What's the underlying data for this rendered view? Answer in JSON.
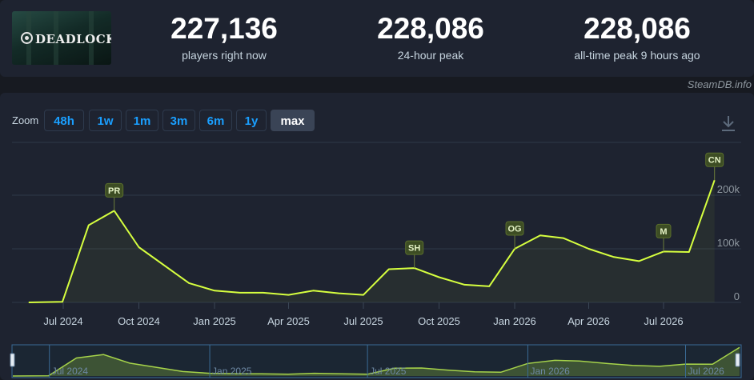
{
  "game": {
    "logo_text": "DEADLOCK"
  },
  "stats": [
    {
      "value": "227,136",
      "label": "players right now"
    },
    {
      "value": "228,086",
      "label": "24-hour peak"
    },
    {
      "value": "228,086",
      "label": "all-time peak 9 hours ago"
    }
  ],
  "credit": "SteamDB.info",
  "zoom": {
    "label": "Zoom",
    "buttons": [
      "48h",
      "1w",
      "1m",
      "3m",
      "6m",
      "1y",
      "max"
    ],
    "active": "max"
  },
  "chart_data": {
    "type": "line",
    "series": [
      {
        "x": [
          "2024-05-20",
          "2024-06-30",
          "2024-08-01",
          "2024-09-01",
          "2024-10-01",
          "2024-12-01",
          "2025-01-01",
          "2025-02-01",
          "2025-03-01",
          "2025-04-01",
          "2025-05-01",
          "2025-06-01",
          "2025-07-01",
          "2025-08-01",
          "2025-09-01",
          "2025-10-01",
          "2025-11-01",
          "2025-12-01",
          "2026-01-01",
          "2026-02-01",
          "2026-03-01",
          "2026-04-01",
          "2026-05-01",
          "2026-06-01",
          "2026-07-01",
          "2026-08-01",
          "2026-09-01"
        ],
        "y": [
          0,
          1000,
          144000,
          171000,
          103000,
          36000,
          22000,
          18000,
          18000,
          14000,
          22000,
          17000,
          14000,
          62000,
          64000,
          47000,
          33000,
          30000,
          100000,
          125000,
          120000,
          100000,
          85000,
          77000,
          95000,
          94000,
          228000
        ]
      }
    ],
    "annotations": [
      {
        "label": "PR",
        "x": "2024-09-01"
      },
      {
        "label": "SH",
        "x": "2025-09-01"
      },
      {
        "label": "OG",
        "x": "2026-01-01"
      },
      {
        "label": "M",
        "x": "2026-07-01"
      },
      {
        "label": "CN",
        "x": "2026-09-01"
      }
    ],
    "x_ticks": [
      "Jul 2024",
      "Oct 2024",
      "Jan 2025",
      "Apr 2025",
      "Jul 2025",
      "Oct 2025",
      "Jan 2026",
      "Apr 2026",
      "Jul 2026"
    ],
    "y_ticks": [
      "0",
      "100k",
      "200k"
    ],
    "navigator_ticks": [
      "Jul 2024",
      "Jan 2025",
      "Jul 2025",
      "Jan 2026",
      "Jul 2026"
    ],
    "ylim": [
      0,
      260000
    ],
    "line_color": "#d6ff3f",
    "grid": true
  }
}
